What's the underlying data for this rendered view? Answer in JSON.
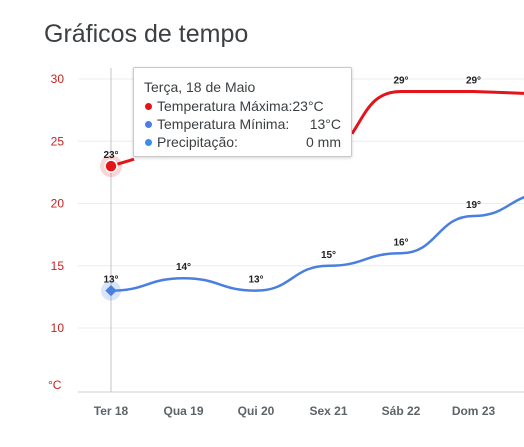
{
  "header": {
    "title": "Gráficos de tempo"
  },
  "colors": {
    "max": "#e4141b",
    "min": "#4a7fe0",
    "precip": "#3b8ee8",
    "axis": "#c5221f"
  },
  "tooltip": {
    "title": "Terça, 18 de Maio",
    "rows": [
      {
        "label": "Temperatura Máxima:",
        "value": "23°C",
        "color": "#e4141b"
      },
      {
        "label": "Temperatura Mínima:",
        "value": "13°C",
        "color": "#4a7fe0"
      },
      {
        "label": "Precipitação:",
        "value": "0 mm",
        "color": "#3b8ee8"
      }
    ]
  },
  "chart_data": {
    "type": "line",
    "categories": [
      "Ter 18",
      "Qua 19",
      "Qui 20",
      "Sex 21",
      "Sáb 22",
      "Dom 23"
    ],
    "series": [
      {
        "name": "Temperatura Máxima",
        "values": [
          23,
          null,
          null,
          null,
          29,
          29
        ],
        "labels": [
          "23°",
          "",
          "",
          "",
          "29°",
          "29°"
        ]
      },
      {
        "name": "Temperatura Mínima",
        "values": [
          13,
          14,
          13,
          15,
          16,
          19
        ],
        "labels": [
          "13°",
          "14°",
          "13°",
          "15°",
          "16°",
          "19°"
        ]
      }
    ],
    "yticks": [
      "30",
      "25",
      "20",
      "15",
      "10"
    ],
    "yunit": "°C",
    "ylim": [
      10,
      30
    ],
    "selected_index": 0,
    "grid": true
  }
}
